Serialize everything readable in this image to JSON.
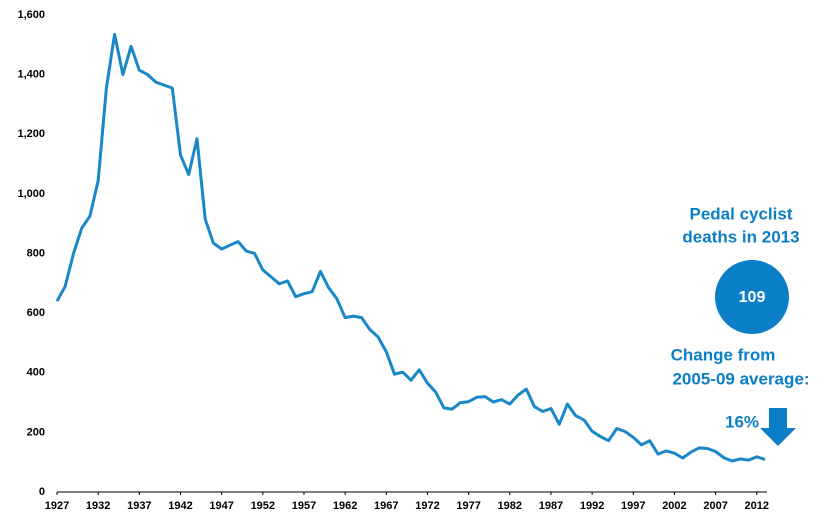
{
  "chart_data": {
    "type": "line",
    "x": [
      1927,
      1928,
      1929,
      1930,
      1931,
      1932,
      1933,
      1934,
      1935,
      1936,
      1937,
      1938,
      1939,
      1940,
      1941,
      1942,
      1943,
      1944,
      1945,
      1946,
      1947,
      1948,
      1949,
      1950,
      1951,
      1952,
      1953,
      1954,
      1955,
      1956,
      1957,
      1958,
      1959,
      1960,
      1961,
      1962,
      1963,
      1964,
      1965,
      1966,
      1967,
      1968,
      1969,
      1970,
      1971,
      1972,
      1973,
      1974,
      1975,
      1976,
      1977,
      1978,
      1979,
      1980,
      1981,
      1982,
      1983,
      1984,
      1985,
      1986,
      1987,
      1988,
      1989,
      1990,
      1991,
      1992,
      1993,
      1994,
      1995,
      1996,
      1997,
      1998,
      1999,
      2000,
      2001,
      2002,
      2003,
      2004,
      2005,
      2006,
      2007,
      2008,
      2009,
      2010,
      2011,
      2012,
      2013
    ],
    "values": [
      640,
      690,
      800,
      885,
      925,
      1045,
      1355,
      1535,
      1400,
      1495,
      1415,
      1400,
      1375,
      1365,
      1355,
      1130,
      1065,
      1185,
      915,
      835,
      815,
      828,
      840,
      808,
      800,
      745,
      722,
      698,
      708,
      655,
      665,
      672,
      740,
      685,
      648,
      585,
      590,
      585,
      545,
      520,
      470,
      395,
      402,
      375,
      410,
      365,
      335,
      282,
      278,
      300,
      303,
      318,
      320,
      302,
      310,
      295,
      325,
      345,
      286,
      270,
      280,
      227,
      295,
      256,
      242,
      204,
      186,
      172,
      213,
      203,
      183,
      158,
      172,
      127,
      138,
      130,
      114,
      134,
      148,
      146,
      136,
      115,
      104,
      111,
      107,
      118,
      109
    ],
    "color": "#1a87c9",
    "xlim": [
      1927,
      2013
    ],
    "xticks": [
      1927,
      1932,
      1937,
      1942,
      1947,
      1952,
      1957,
      1962,
      1967,
      1972,
      1977,
      1982,
      1987,
      1992,
      1997,
      2002,
      2007,
      2012
    ],
    "ylim": [
      0,
      1600
    ],
    "yticks": [
      0,
      200,
      400,
      600,
      800,
      {
        "value": 1000,
        "label": "1,000"
      },
      {
        "value": 1200,
        "label": "1,200"
      },
      {
        "value": 1400,
        "label": "1,400"
      },
      {
        "value": 1600,
        "label": "1,600"
      }
    ],
    "grid": false,
    "annotations": {
      "headline": [
        "Pedal cyclist",
        "deaths in 2013"
      ],
      "value": 109,
      "change_label": [
        "Change from",
        "2005-09 average:"
      ],
      "change": "16%"
    }
  }
}
